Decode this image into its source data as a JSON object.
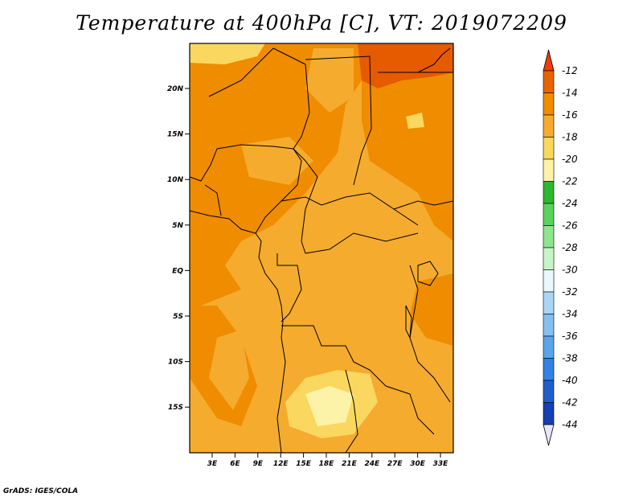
{
  "title": "Temperature at 400hPa [C], VT: 2019072209",
  "credit": "GrADS: IGES/COLA",
  "map": {
    "lat_labels": [
      "20N",
      "15N",
      "10N",
      "5N",
      "EQ",
      "5S",
      "10S",
      "15S"
    ],
    "lon_labels": [
      "3E",
      "6E",
      "9E",
      "12E",
      "15E",
      "18E",
      "21E",
      "24E",
      "27E",
      "30E",
      "33E"
    ],
    "colors": {
      "c12": "#e65a00",
      "c14": "#f08c00",
      "c16": "#f5ab2e",
      "c18": "#fad75e",
      "c20": "#fdf3a8"
    }
  },
  "colorbar": {
    "labels": [
      "-12",
      "-14",
      "-16",
      "-18",
      "-20",
      "-22",
      "-24",
      "-26",
      "-28",
      "-30",
      "-32",
      "-34",
      "-36",
      "-38",
      "-40",
      "-42",
      "-44"
    ],
    "colors": [
      "#f03c00",
      "#e66400",
      "#f08c00",
      "#f5ab2e",
      "#fad75e",
      "#fdf3a8",
      "#2db82d",
      "#5ad25a",
      "#8ee68e",
      "#c8f5c8",
      "#eaf7fb",
      "#aad6f5",
      "#85c0f0",
      "#5aa5ea",
      "#3282e1",
      "#1e5fcc",
      "#1440b4",
      "#0a1a82",
      "#e6e6fa"
    ]
  }
}
